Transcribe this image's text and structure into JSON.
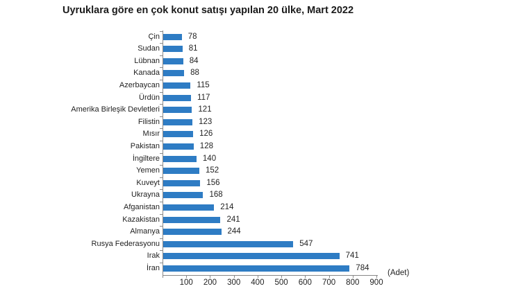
{
  "chart_data": {
    "type": "bar",
    "orientation": "horizontal",
    "title": "Uyruklara göre en çok konut satışı yapılan 20 ülke, Mart 2022",
    "xlabel": "(Adet)",
    "ylabel": "",
    "xlim": [
      0,
      900
    ],
    "xticks": [
      "100",
      "200",
      "300",
      "400",
      "500",
      "600",
      "700",
      "800",
      "900"
    ],
    "grid": false,
    "legend": null,
    "bar_color": "#2e7cc4",
    "categories": [
      "Çin",
      "Sudan",
      "Lübnan",
      "Kanada",
      "Azerbaycan",
      "Ürdün",
      "Amerika Birleşik Devletleri",
      "Filistin",
      "Mısır",
      "Pakistan",
      "İngiltere",
      "Yemen",
      "Kuveyt",
      "Ukrayna",
      "Afganistan",
      "Kazakistan",
      "Almanya",
      "Rusya Federasyonu",
      "Irak",
      "İran"
    ],
    "values": [
      78,
      81,
      84,
      88,
      115,
      117,
      121,
      123,
      126,
      128,
      140,
      152,
      156,
      168,
      214,
      241,
      244,
      547,
      741,
      784
    ],
    "labels": [
      "78",
      "81",
      "84",
      "88",
      "115",
      "117",
      "121",
      "123",
      "126",
      "128",
      "140",
      "152",
      "156",
      "168",
      "214",
      "241",
      "244",
      "547",
      "741",
      "784"
    ]
  }
}
